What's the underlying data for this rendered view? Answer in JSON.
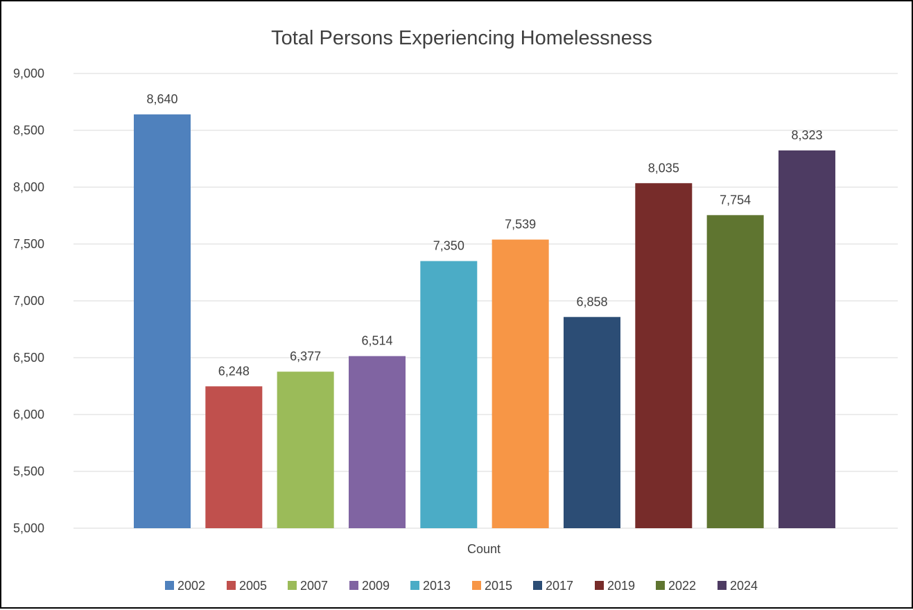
{
  "chart_data": {
    "type": "bar",
    "title": "Total Persons Experiencing Homelessness",
    "xlabel": "",
    "ylabel": "",
    "categories": [
      "Count"
    ],
    "series": [
      {
        "name": "2002",
        "values": [
          8640
        ],
        "label": "8,640",
        "color": "#4F81BD"
      },
      {
        "name": "2005",
        "values": [
          6248
        ],
        "label": "6,248",
        "color": "#C0504D"
      },
      {
        "name": "2007",
        "values": [
          6377
        ],
        "label": "6,377",
        "color": "#9BBB59"
      },
      {
        "name": "2009",
        "values": [
          6514
        ],
        "label": "6,514",
        "color": "#8064A2"
      },
      {
        "name": "2013",
        "values": [
          7350
        ],
        "label": "7,350",
        "color": "#4BACC6"
      },
      {
        "name": "2015",
        "values": [
          7539
        ],
        "label": "7,539",
        "color": "#F79646"
      },
      {
        "name": "2017",
        "values": [
          6858
        ],
        "label": "6,858",
        "color": "#2C4D75"
      },
      {
        "name": "2019",
        "values": [
          8035
        ],
        "label": "8,035",
        "color": "#772C2A"
      },
      {
        "name": "2022",
        "values": [
          7754
        ],
        "label": "7,754",
        "color": "#5F7530"
      },
      {
        "name": "2024",
        "values": [
          8323
        ],
        "label": "8,323",
        "color": "#4D3B62"
      }
    ],
    "ylim": [
      5000,
      9000
    ],
    "yticks": [
      {
        "value": 5000,
        "label": "5,000"
      },
      {
        "value": 5500,
        "label": "5,500"
      },
      {
        "value": 6000,
        "label": "6,000"
      },
      {
        "value": 6500,
        "label": "6,500"
      },
      {
        "value": 7000,
        "label": "7,000"
      },
      {
        "value": 7500,
        "label": "7,500"
      },
      {
        "value": 8000,
        "label": "8,000"
      },
      {
        "value": 8500,
        "label": "8,500"
      },
      {
        "value": 9000,
        "label": "9,000"
      }
    ],
    "grid": true,
    "legend": "bottom"
  }
}
